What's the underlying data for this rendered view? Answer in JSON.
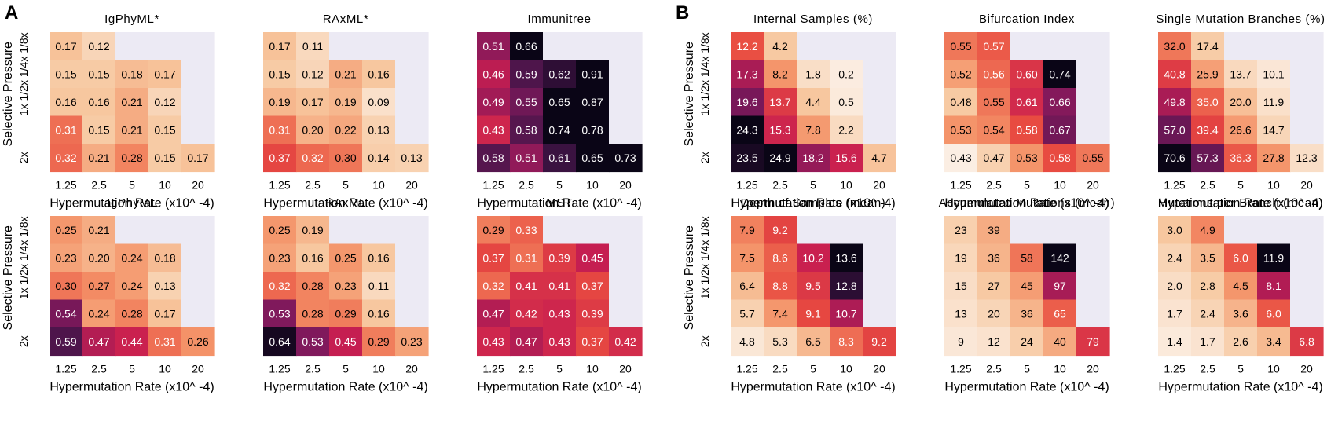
{
  "panel_letters": {
    "a": "A",
    "b": "B"
  },
  "colors": {
    "na_cell": "#ECEAF4",
    "text_dark": "#000000",
    "text_light": "#ffffff"
  },
  "chart_data": [
    {
      "type": "heatmap",
      "title": "IgPhyML*",
      "x_ticks": [
        "1.25",
        "2.5",
        "5",
        "10",
        "20"
      ],
      "y_ticks": [
        "1/8x",
        "1/4x",
        "1/2x",
        "1x",
        "2x"
      ],
      "xlabel": "Hypermutation Rate (x10^ -4)",
      "ylabel": "Selective Pressure",
      "rows": [
        [
          "0.17",
          "0.12",
          null,
          null,
          null
        ],
        [
          "0.15",
          "0.15",
          "0.18",
          "0.17",
          null
        ],
        [
          "0.16",
          "0.16",
          "0.21",
          "0.12",
          null
        ],
        [
          "0.31",
          "0.15",
          "0.21",
          "0.15",
          null
        ],
        [
          "0.32",
          "0.21",
          "0.28",
          "0.15",
          "0.17"
        ]
      ],
      "color_range": [
        0.05,
        0.65
      ]
    },
    {
      "type": "heatmap",
      "title": "RAxML*",
      "x_ticks": [
        "1.25",
        "2.5",
        "5",
        "10",
        "20"
      ],
      "y_ticks": [
        "1/8x",
        "1/4x",
        "1/2x",
        "1x",
        "2x"
      ],
      "xlabel": "Hypermutation Rate (x10^ -4)",
      "ylabel": "Selective Pressure",
      "rows": [
        [
          "0.17",
          "0.11",
          null,
          null,
          null
        ],
        [
          "0.15",
          "0.12",
          "0.21",
          "0.16",
          null
        ],
        [
          "0.19",
          "0.17",
          "0.19",
          "0.09",
          null
        ],
        [
          "0.31",
          "0.20",
          "0.22",
          "0.13",
          null
        ],
        [
          "0.37",
          "0.32",
          "0.30",
          "0.14",
          "0.13"
        ]
      ],
      "color_range": [
        0.05,
        0.65
      ]
    },
    {
      "type": "heatmap",
      "title": "Immunitree",
      "x_ticks": [
        "1.25",
        "2.5",
        "5",
        "10",
        "20"
      ],
      "y_ticks": [
        "1/8x",
        "1/4x",
        "1/2x",
        "1x",
        "2x"
      ],
      "xlabel": "Hypermutation Rate (x10^ -4)",
      "ylabel": "Selective Pressure",
      "rows": [
        [
          "0.51",
          "0.66",
          null,
          null,
          null
        ],
        [
          "0.46",
          "0.59",
          "0.62",
          "0.91",
          null
        ],
        [
          "0.49",
          "0.55",
          "0.65",
          "0.87",
          null
        ],
        [
          "0.43",
          "0.58",
          "0.74",
          "0.78",
          null
        ],
        [
          "0.58",
          "0.51",
          "0.61",
          "0.65",
          "0.73"
        ]
      ],
      "color_range": [
        0.05,
        0.65
      ]
    },
    {
      "type": "heatmap",
      "title": "IgPhyML",
      "x_ticks": [
        "1.25",
        "2.5",
        "5",
        "10",
        "20"
      ],
      "y_ticks": [
        "1/8x",
        "1/4x",
        "1/2x",
        "1x",
        "2x"
      ],
      "xlabel": "Hypermutation Rate (x10^ -4)",
      "ylabel": "Selective Pressure",
      "rows": [
        [
          "0.25",
          "0.21",
          null,
          null,
          null
        ],
        [
          "0.23",
          "0.20",
          "0.24",
          "0.18",
          null
        ],
        [
          "0.30",
          "0.27",
          "0.24",
          "0.13",
          null
        ],
        [
          "0.54",
          "0.24",
          "0.28",
          "0.17",
          null
        ],
        [
          "0.59",
          "0.47",
          "0.44",
          "0.31",
          "0.26"
        ]
      ],
      "color_range": [
        0.05,
        0.65
      ]
    },
    {
      "type": "heatmap",
      "title": "RAxML",
      "x_ticks": [
        "1.25",
        "2.5",
        "5",
        "10",
        "20"
      ],
      "y_ticks": [
        "1/8x",
        "1/4x",
        "1/2x",
        "1x",
        "2x"
      ],
      "xlabel": "Hypermutation Rate (x10^ -4)",
      "ylabel": "Selective Pressure",
      "rows": [
        [
          "0.25",
          "0.19",
          null,
          null,
          null
        ],
        [
          "0.23",
          "0.16",
          "0.25",
          "0.16",
          null
        ],
        [
          "0.32",
          "0.28",
          "0.23",
          "0.11",
          null
        ],
        [
          "0.53",
          "0.28",
          "0.29",
          "0.16",
          null
        ],
        [
          "0.64",
          "0.53",
          "0.45",
          "0.29",
          "0.23"
        ]
      ],
      "color_range": [
        0.05,
        0.65
      ]
    },
    {
      "type": "heatmap",
      "title": "MST",
      "x_ticks": [
        "1.25",
        "2.5",
        "5",
        "10",
        "20"
      ],
      "y_ticks": [
        "1/8x",
        "1/4x",
        "1/2x",
        "1x",
        "2x"
      ],
      "xlabel": "Hypermutation Rate (x10^ -4)",
      "ylabel": "Selective Pressure",
      "rows": [
        [
          "0.29",
          "0.33",
          null,
          null,
          null
        ],
        [
          "0.37",
          "0.31",
          "0.39",
          "0.45",
          null
        ],
        [
          "0.32",
          "0.41",
          "0.41",
          "0.37",
          null
        ],
        [
          "0.47",
          "0.42",
          "0.43",
          "0.39",
          null
        ],
        [
          "0.43",
          "0.47",
          "0.43",
          "0.37",
          "0.42"
        ]
      ],
      "color_range": [
        0.05,
        0.65
      ]
    },
    {
      "type": "heatmap",
      "title": "Internal Samples (%)",
      "x_ticks": [
        "1.25",
        "2.5",
        "5",
        "10",
        "20"
      ],
      "y_ticks": [
        "1/8x",
        "1/4x",
        "1/2x",
        "1x",
        "2x"
      ],
      "xlabel": "Hypermutation Rate (x10^ -4)",
      "ylabel": "Selective Pressure",
      "rows": [
        [
          "12.2",
          "4.2",
          null,
          null,
          null
        ],
        [
          "17.3",
          "8.2",
          "1.8",
          "0.2",
          null
        ],
        [
          "19.6",
          "13.7",
          "4.4",
          "0.5",
          null
        ],
        [
          "24.3",
          "15.3",
          "7.8",
          "2.2",
          null
        ],
        [
          "23.5",
          "24.9",
          "18.2",
          "15.6",
          "4.7"
        ]
      ],
      "color_range": [
        0,
        24
      ]
    },
    {
      "type": "heatmap",
      "title": "Bifurcation Index",
      "x_ticks": [
        "1.25",
        "2.5",
        "5",
        "10",
        "20"
      ],
      "y_ticks": [
        "1/8x",
        "1/4x",
        "1/2x",
        "1x",
        "2x"
      ],
      "xlabel": "Hypermutation Rate (x10^ -4)",
      "ylabel": "Selective Pressure",
      "rows": [
        [
          "0.55",
          "0.57",
          null,
          null,
          null
        ],
        [
          "0.52",
          "0.56",
          "0.60",
          "0.74",
          null
        ],
        [
          "0.48",
          "0.55",
          "0.61",
          "0.66",
          null
        ],
        [
          "0.53",
          "0.54",
          "0.58",
          "0.67",
          null
        ],
        [
          "0.43",
          "0.47",
          "0.53",
          "0.58",
          "0.55"
        ]
      ],
      "color_range": [
        0.43,
        0.72
      ]
    },
    {
      "type": "heatmap",
      "title": "Single Mutation Branches (%)",
      "x_ticks": [
        "1.25",
        "2.5",
        "5",
        "10",
        "20"
      ],
      "y_ticks": [
        "1/8x",
        "1/4x",
        "1/2x",
        "1x",
        "2x"
      ],
      "xlabel": "Hypermutation Rate (x10^ -4)",
      "ylabel": "Selective Pressure",
      "rows": [
        [
          "32.0",
          "17.4",
          null,
          null,
          null
        ],
        [
          "40.8",
          "25.9",
          "13.7",
          "10.1",
          null
        ],
        [
          "49.8",
          "35.0",
          "20.0",
          "11.9",
          null
        ],
        [
          "57.0",
          "39.4",
          "26.6",
          "14.7",
          null
        ],
        [
          "70.6",
          "57.3",
          "36.3",
          "27.8",
          "12.3"
        ]
      ],
      "color_range": [
        8,
        66
      ]
    },
    {
      "type": "heatmap",
      "title": "Depth of Samples (mean)",
      "x_ticks": [
        "1.25",
        "2.5",
        "5",
        "10",
        "20"
      ],
      "y_ticks": [
        "1/8x",
        "1/4x",
        "1/2x",
        "1x",
        "2x"
      ],
      "xlabel": "Hypermutation Rate (x10^ -4)",
      "ylabel": "Selective Pressure",
      "rows": [
        [
          "7.9",
          "9.2",
          null,
          null,
          null
        ],
        [
          "7.5",
          "8.6",
          "10.2",
          "13.6",
          null
        ],
        [
          "6.4",
          "8.8",
          "9.5",
          "12.8",
          null
        ],
        [
          "5.7",
          "7.4",
          "9.1",
          "10.7",
          null
        ],
        [
          "4.8",
          "5.3",
          "6.5",
          "8.3",
          "9.2"
        ]
      ],
      "color_range": [
        4.5,
        13.2
      ]
    },
    {
      "type": "heatmap",
      "title": "Accumulated Mutations (mean)",
      "x_ticks": [
        "1.25",
        "2.5",
        "5",
        "10",
        "20"
      ],
      "y_ticks": [
        "1/8x",
        "1/4x",
        "1/2x",
        "1x",
        "2x"
      ],
      "xlabel": "Hypermutation Rate (x10^ -4)",
      "ylabel": "Selective Pressure",
      "rows": [
        [
          "23",
          "39",
          null,
          null,
          null
        ],
        [
          "19",
          "36",
          "58",
          "142",
          null
        ],
        [
          "15",
          "27",
          "45",
          "97",
          null
        ],
        [
          "13",
          "20",
          "36",
          "65",
          null
        ],
        [
          "9",
          "12",
          "24",
          "40",
          "79"
        ]
      ],
      "color_range": [
        5,
        132
      ]
    },
    {
      "type": "heatmap",
      "title": "Mutations per Branch (mean)",
      "x_ticks": [
        "1.25",
        "2.5",
        "5",
        "10",
        "20"
      ],
      "y_ticks": [
        "1/8x",
        "1/4x",
        "1/2x",
        "1x",
        "2x"
      ],
      "xlabel": "Hypermutation Rate (x10^ -4)",
      "ylabel": "Selective Pressure",
      "rows": [
        [
          "3.0",
          "4.9",
          null,
          null,
          null
        ],
        [
          "2.4",
          "3.5",
          "6.0",
          "11.9",
          null
        ],
        [
          "2.0",
          "2.8",
          "4.5",
          "8.1",
          null
        ],
        [
          "1.7",
          "2.4",
          "3.6",
          "6.0",
          null
        ],
        [
          "1.4",
          "1.7",
          "2.6",
          "3.4",
          "6.8"
        ]
      ],
      "color_range": [
        1.2,
        11.0
      ]
    }
  ]
}
